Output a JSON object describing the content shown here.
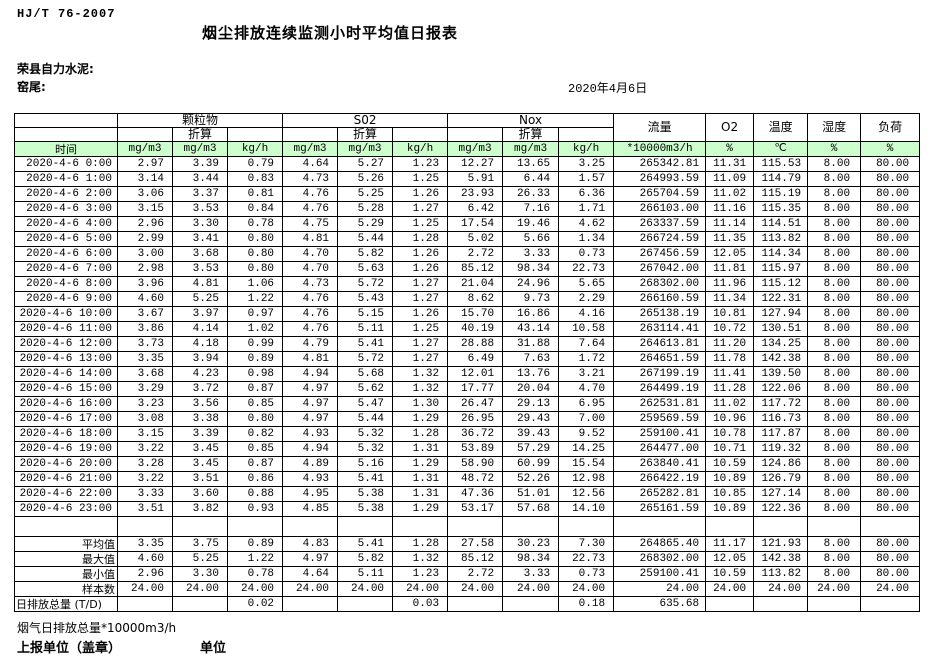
{
  "page": {
    "standard": "HJ/T  76-2007",
    "title": "烟尘排放连续监测小时平均值日报表",
    "company": "荣县自力水泥:",
    "kiln": "窑尾:",
    "date": "2020年4月6日"
  },
  "table": {
    "time_header": "时间",
    "groups": [
      {
        "label": "颗粒物",
        "sub": "折算",
        "units": [
          "mg/m3",
          "mg/m3",
          "kg/h"
        ]
      },
      {
        "label": "S02",
        "sub": "折算",
        "units": [
          "mg/m3",
          "mg/m3",
          "kg/h"
        ]
      },
      {
        "label": "Nox",
        "sub": "折算",
        "units": [
          "mg/m3",
          "mg/m3",
          "kg/h"
        ]
      }
    ],
    "singles": [
      {
        "label": "流量",
        "unit": "*10000m3/h"
      },
      {
        "label": "O2",
        "unit": "%"
      },
      {
        "label": "温度",
        "unit": "℃"
      },
      {
        "label": "湿度",
        "unit": "%"
      },
      {
        "label": "负荷",
        "unit": "%"
      }
    ],
    "rows": [
      [
        "2020-4-6  0:00",
        "2.97",
        "3.39",
        "0.79",
        "4.64",
        "5.27",
        "1.23",
        "12.27",
        "13.65",
        "3.25",
        "265342.81",
        "11.31",
        "115.53",
        "8.00",
        "80.00"
      ],
      [
        "2020-4-6  1:00",
        "3.14",
        "3.44",
        "0.83",
        "4.73",
        "5.26",
        "1.25",
        "5.91",
        "6.44",
        "1.57",
        "264993.59",
        "11.09",
        "114.79",
        "8.00",
        "80.00"
      ],
      [
        "2020-4-6  2:00",
        "3.06",
        "3.37",
        "0.81",
        "4.76",
        "5.25",
        "1.26",
        "23.93",
        "26.33",
        "6.36",
        "265704.59",
        "11.02",
        "115.19",
        "8.00",
        "80.00"
      ],
      [
        "2020-4-6  3:00",
        "3.15",
        "3.53",
        "0.84",
        "4.76",
        "5.28",
        "1.27",
        "6.42",
        "7.16",
        "1.71",
        "266103.00",
        "11.16",
        "115.35",
        "8.00",
        "80.00"
      ],
      [
        "2020-4-6  4:00",
        "2.96",
        "3.30",
        "0.78",
        "4.75",
        "5.29",
        "1.25",
        "17.54",
        "19.46",
        "4.62",
        "263337.59",
        "11.14",
        "114.51",
        "8.00",
        "80.00"
      ],
      [
        "2020-4-6  5:00",
        "2.99",
        "3.41",
        "0.80",
        "4.81",
        "5.44",
        "1.28",
        "5.02",
        "5.66",
        "1.34",
        "266724.59",
        "11.35",
        "113.82",
        "8.00",
        "80.00"
      ],
      [
        "2020-4-6  6:00",
        "3.00",
        "3.68",
        "0.80",
        "4.70",
        "5.82",
        "1.26",
        "2.72",
        "3.33",
        "0.73",
        "267456.59",
        "12.05",
        "114.34",
        "8.00",
        "80.00"
      ],
      [
        "2020-4-6  7:00",
        "2.98",
        "3.53",
        "0.80",
        "4.70",
        "5.63",
        "1.26",
        "85.12",
        "98.34",
        "22.73",
        "267042.00",
        "11.81",
        "115.97",
        "8.00",
        "80.00"
      ],
      [
        "2020-4-6  8:00",
        "3.96",
        "4.81",
        "1.06",
        "4.73",
        "5.72",
        "1.27",
        "21.04",
        "24.96",
        "5.65",
        "268302.00",
        "11.96",
        "115.12",
        "8.00",
        "80.00"
      ],
      [
        "2020-4-6  9:00",
        "4.60",
        "5.25",
        "1.22",
        "4.76",
        "5.43",
        "1.27",
        "8.62",
        "9.73",
        "2.29",
        "266160.59",
        "11.34",
        "122.31",
        "8.00",
        "80.00"
      ],
      [
        "2020-4-6 10:00",
        "3.67",
        "3.97",
        "0.97",
        "4.76",
        "5.15",
        "1.26",
        "15.70",
        "16.86",
        "4.16",
        "265138.19",
        "10.81",
        "127.94",
        "8.00",
        "80.00"
      ],
      [
        "2020-4-6 11:00",
        "3.86",
        "4.14",
        "1.02",
        "4.76",
        "5.11",
        "1.25",
        "40.19",
        "43.14",
        "10.58",
        "263114.41",
        "10.72",
        "130.51",
        "8.00",
        "80.00"
      ],
      [
        "2020-4-6 12:00",
        "3.73",
        "4.18",
        "0.99",
        "4.79",
        "5.41",
        "1.27",
        "28.88",
        "31.88",
        "7.64",
        "264613.81",
        "11.20",
        "134.25",
        "8.00",
        "80.00"
      ],
      [
        "2020-4-6 13:00",
        "3.35",
        "3.94",
        "0.89",
        "4.81",
        "5.72",
        "1.27",
        "6.49",
        "7.63",
        "1.72",
        "264651.59",
        "11.78",
        "142.38",
        "8.00",
        "80.00"
      ],
      [
        "2020-4-6 14:00",
        "3.68",
        "4.23",
        "0.98",
        "4.94",
        "5.68",
        "1.32",
        "12.01",
        "13.76",
        "3.21",
        "267199.19",
        "11.41",
        "139.50",
        "8.00",
        "80.00"
      ],
      [
        "2020-4-6 15:00",
        "3.29",
        "3.72",
        "0.87",
        "4.97",
        "5.62",
        "1.32",
        "17.77",
        "20.04",
        "4.70",
        "264499.19",
        "11.28",
        "122.06",
        "8.00",
        "80.00"
      ],
      [
        "2020-4-6 16:00",
        "3.23",
        "3.56",
        "0.85",
        "4.97",
        "5.47",
        "1.30",
        "26.47",
        "29.13",
        "6.95",
        "262531.81",
        "11.02",
        "117.72",
        "8.00",
        "80.00"
      ],
      [
        "2020-4-6 17:00",
        "3.08",
        "3.38",
        "0.80",
        "4.97",
        "5.44",
        "1.29",
        "26.95",
        "29.43",
        "7.00",
        "259569.59",
        "10.96",
        "116.73",
        "8.00",
        "80.00"
      ],
      [
        "2020-4-6 18:00",
        "3.15",
        "3.39",
        "0.82",
        "4.93",
        "5.32",
        "1.28",
        "36.72",
        "39.43",
        "9.52",
        "259100.41",
        "10.78",
        "117.87",
        "8.00",
        "80.00"
      ],
      [
        "2020-4-6 19:00",
        "3.22",
        "3.45",
        "0.85",
        "4.94",
        "5.32",
        "1.31",
        "53.89",
        "57.29",
        "14.25",
        "264477.00",
        "10.71",
        "119.32",
        "8.00",
        "80.00"
      ],
      [
        "2020-4-6 20:00",
        "3.28",
        "3.45",
        "0.87",
        "4.89",
        "5.16",
        "1.29",
        "58.90",
        "60.99",
        "15.54",
        "263840.41",
        "10.59",
        "124.86",
        "8.00",
        "80.00"
      ],
      [
        "2020-4-6 21:00",
        "3.22",
        "3.51",
        "0.86",
        "4.93",
        "5.41",
        "1.31",
        "48.72",
        "52.26",
        "12.98",
        "266422.19",
        "10.89",
        "126.79",
        "8.00",
        "80.00"
      ],
      [
        "2020-4-6 22:00",
        "3.33",
        "3.60",
        "0.88",
        "4.95",
        "5.38",
        "1.31",
        "47.36",
        "51.01",
        "12.56",
        "265282.81",
        "10.85",
        "127.14",
        "8.00",
        "80.00"
      ],
      [
        "2020-4-6 23:00",
        "3.51",
        "3.82",
        "0.93",
        "4.85",
        "5.38",
        "1.29",
        "53.17",
        "57.68",
        "14.10",
        "265161.59",
        "10.89",
        "122.36",
        "8.00",
        "80.00"
      ]
    ],
    "summary": [
      {
        "label": "平均值",
        "values": [
          "3.35",
          "3.75",
          "0.89",
          "4.83",
          "5.41",
          "1.28",
          "27.58",
          "30.23",
          "7.30",
          "264865.40",
          "11.17",
          "121.93",
          "8.00",
          "80.00"
        ]
      },
      {
        "label": "最大值",
        "values": [
          "4.60",
          "5.25",
          "1.22",
          "4.97",
          "5.82",
          "1.32",
          "85.12",
          "98.34",
          "22.73",
          "268302.00",
          "12.05",
          "142.38",
          "8.00",
          "80.00"
        ]
      },
      {
        "label": "最小值",
        "values": [
          "2.96",
          "3.30",
          "0.78",
          "4.64",
          "5.11",
          "1.23",
          "2.72",
          "3.33",
          "0.73",
          "259100.41",
          "10.59",
          "113.82",
          "8.00",
          "80.00"
        ]
      },
      {
        "label": "样本数",
        "values": [
          "24.00",
          "24.00",
          "24.00",
          "24.00",
          "24.00",
          "24.00",
          "24.00",
          "24.00",
          "24.00",
          "24.00",
          "24.00",
          "24.00",
          "24.00",
          "24.00"
        ]
      }
    ],
    "total": {
      "label": "日排放总量 (T/D)",
      "values": [
        "",
        "",
        "0.02",
        "",
        "",
        "0.03",
        "",
        "",
        "0.18",
        "635.68",
        "",
        "",
        "",
        ""
      ]
    }
  },
  "footer": {
    "flow_note": "烟气日排放总量*10000m3/h",
    "report_unit": "上报单位（盖章）",
    "unit": "单位"
  },
  "colors": {
    "header_green": "#ccffcc",
    "border": "#000000"
  }
}
